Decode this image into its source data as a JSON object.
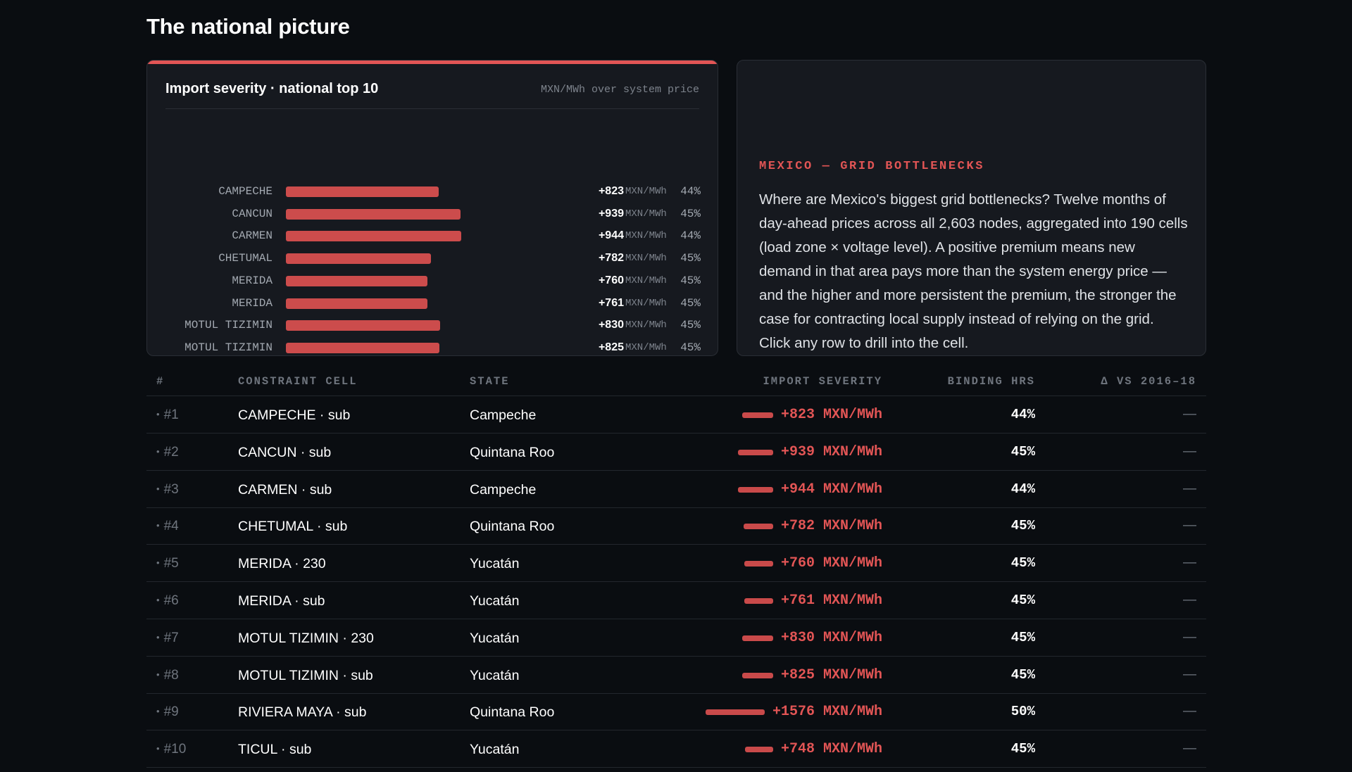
{
  "page_title": "The national picture",
  "chart": {
    "title": "Import severity · national top 10",
    "unit_note": "MXN/MWh over system price"
  },
  "chart_data": {
    "type": "bar",
    "orientation": "horizontal",
    "title": "Import severity · national top 10",
    "subtitle": "MXN/MWh over system price",
    "categories": [
      "CAMPECHE",
      "CANCUN",
      "CARMEN",
      "CHETUMAL",
      "MERIDA",
      "MERIDA",
      "MOTUL TIZIMIN",
      "MOTUL TIZIMIN",
      "RIVIERA MAYA",
      "TICUL"
    ],
    "values": [
      823,
      939,
      944,
      782,
      760,
      761,
      830,
      825,
      1576,
      748
    ],
    "value_labels": [
      "+823",
      "+939",
      "+944",
      "+782",
      "+760",
      "+761",
      "+830",
      "+825",
      "+1576",
      "+748"
    ],
    "value_unit": "MXN/MWh",
    "binding_pct": [
      "44%",
      "45%",
      "44%",
      "45%",
      "45%",
      "45%",
      "45%",
      "45%",
      "50%",
      "45%"
    ],
    "color": "#cc4c4c"
  },
  "intro": {
    "eyebrow": "MEXICO — GRID BOTTLENECKS",
    "body": "Where are Mexico's biggest grid bottlenecks? Twelve months of day-ahead prices across all 2,603 nodes, aggregated into 190 cells (load zone × voltage level). A positive premium means new demand in that area pays more than the system energy price — and the higher and more persistent the premium, the stronger the case for contracting local supply instead of relying on the grid. Click any row to drill into the cell."
  },
  "table": {
    "headers": {
      "rank": "#",
      "cell": "CONSTRAINT CELL",
      "state": "STATE",
      "severity": "IMPORT SEVERITY",
      "binding": "BINDING HRS",
      "delta": "Δ VS 2016–18"
    },
    "rows": [
      {
        "rank": "#1",
        "cell": "CAMPECHE · sub",
        "state": "Campeche",
        "severity": "+823 MXN/MWh",
        "severity_value": 823,
        "binding": "44%",
        "delta": "—"
      },
      {
        "rank": "#2",
        "cell": "CANCUN · sub",
        "state": "Quintana Roo",
        "severity": "+939 MXN/MWh",
        "severity_value": 939,
        "binding": "45%",
        "delta": "—"
      },
      {
        "rank": "#3",
        "cell": "CARMEN · sub",
        "state": "Campeche",
        "severity": "+944 MXN/MWh",
        "severity_value": 944,
        "binding": "44%",
        "delta": "—"
      },
      {
        "rank": "#4",
        "cell": "CHETUMAL · sub",
        "state": "Quintana Roo",
        "severity": "+782 MXN/MWh",
        "severity_value": 782,
        "binding": "45%",
        "delta": "—"
      },
      {
        "rank": "#5",
        "cell": "MERIDA · 230",
        "state": "Yucatán",
        "severity": "+760 MXN/MWh",
        "severity_value": 760,
        "binding": "45%",
        "delta": "—"
      },
      {
        "rank": "#6",
        "cell": "MERIDA · sub",
        "state": "Yucatán",
        "severity": "+761 MXN/MWh",
        "severity_value": 761,
        "binding": "45%",
        "delta": "—"
      },
      {
        "rank": "#7",
        "cell": "MOTUL TIZIMIN · 230",
        "state": "Yucatán",
        "severity": "+830 MXN/MWh",
        "severity_value": 830,
        "binding": "45%",
        "delta": "—"
      },
      {
        "rank": "#8",
        "cell": "MOTUL TIZIMIN · sub",
        "state": "Yucatán",
        "severity": "+825 MXN/MWh",
        "severity_value": 825,
        "binding": "45%",
        "delta": "—"
      },
      {
        "rank": "#9",
        "cell": "RIVIERA MAYA · sub",
        "state": "Quintana Roo",
        "severity": "+1576 MXN/MWh",
        "severity_value": 1576,
        "binding": "50%",
        "delta": "—"
      },
      {
        "rank": "#10",
        "cell": "TICUL · sub",
        "state": "Yucatán",
        "severity": "+748 MXN/MWh",
        "severity_value": 748,
        "binding": "45%",
        "delta": "—"
      }
    ]
  },
  "colors": {
    "accent": "#e25555",
    "background": "#0a0d11",
    "card": "#16191f"
  }
}
